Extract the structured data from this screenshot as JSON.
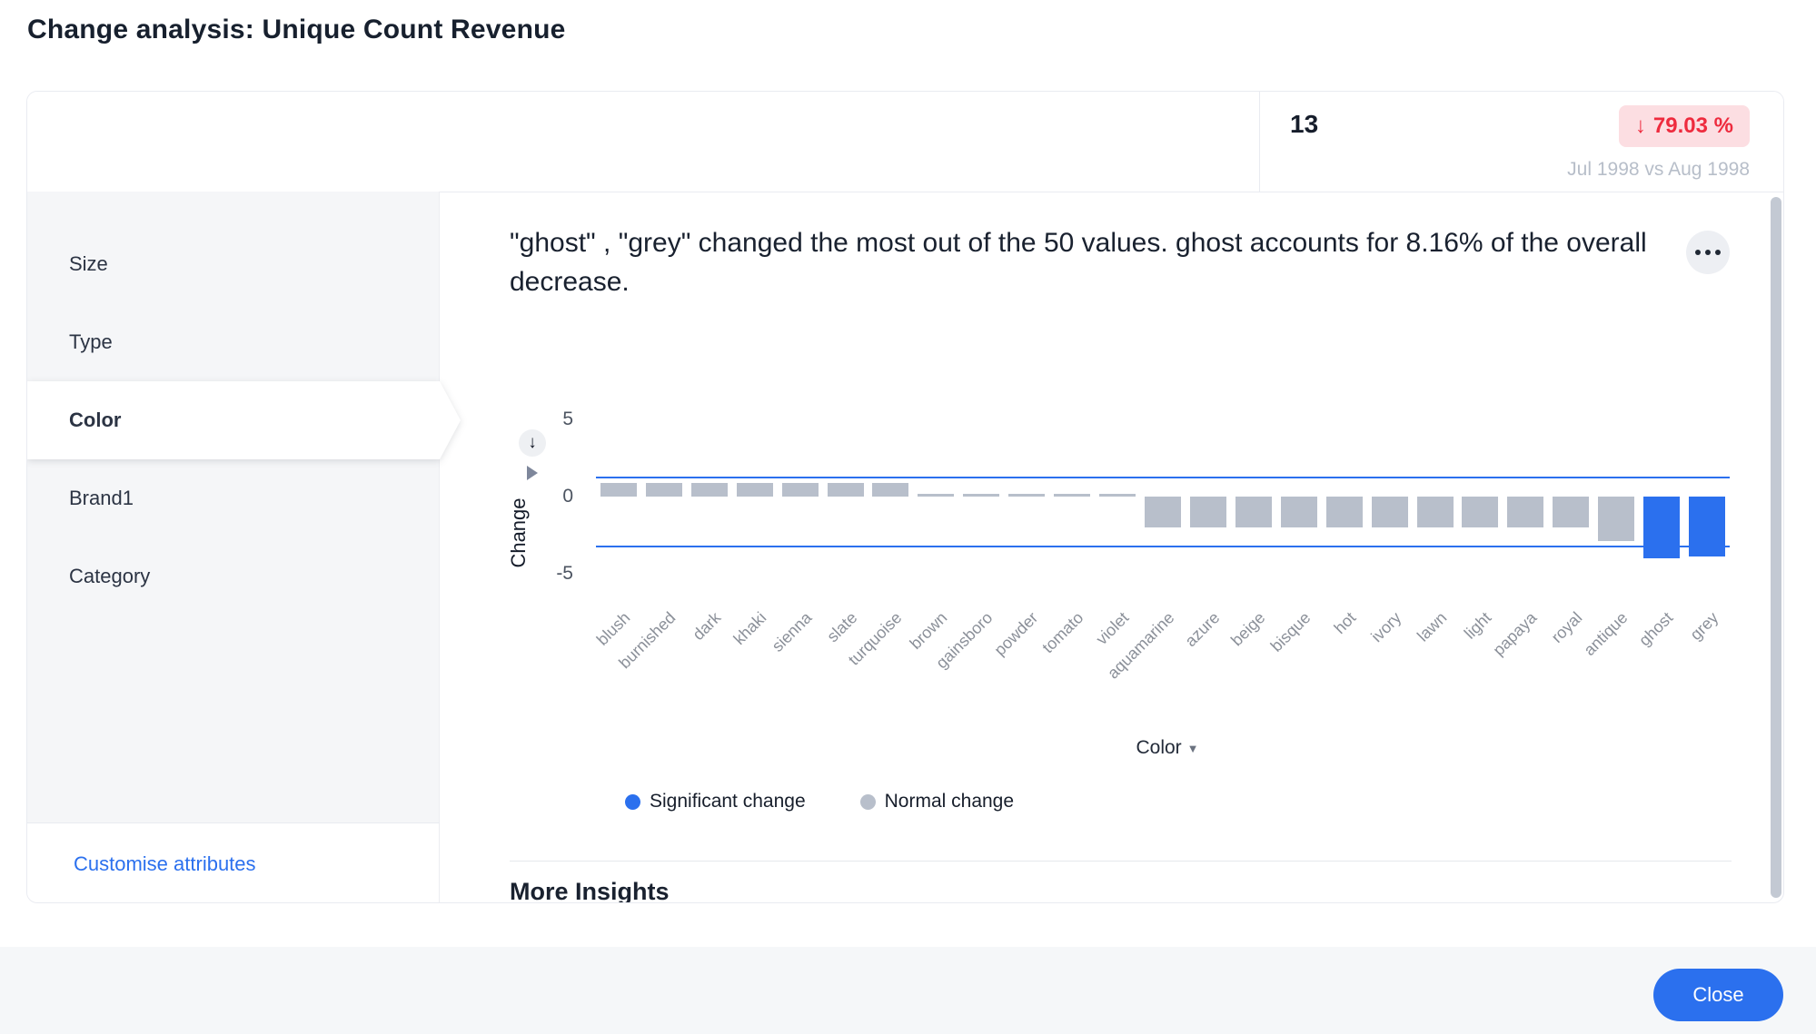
{
  "page_title": "Change analysis: Unique Count Revenue",
  "header": {
    "metric_value": "13",
    "change_badge": {
      "arrow": "↓",
      "value": "79.03 %"
    },
    "comparison_label": "Jul 1998 vs Aug 1998",
    "badge_colors": {
      "text": "#ee2b3e",
      "background": "#fcdee2"
    }
  },
  "sidebar": {
    "items": [
      {
        "label": "Size",
        "selected": false
      },
      {
        "label": "Type",
        "selected": false
      },
      {
        "label": "Color",
        "selected": true
      },
      {
        "label": "Brand1",
        "selected": false
      },
      {
        "label": "Category",
        "selected": false
      }
    ],
    "customise_link": "Customise attributes"
  },
  "insight": {
    "text": "\"ghost\" , \"grey\" changed the most out of the 50 values. ghost accounts for 8.16% of the overall decrease."
  },
  "chart_data": {
    "type": "bar",
    "ylabel": "Change",
    "xlabel": "Color",
    "ylim": [
      -5,
      5
    ],
    "yticks": [
      5,
      0,
      -5
    ],
    "grid": false,
    "threshold_upper": 1.3,
    "threshold_lower": -3.2,
    "categories": [
      "blush",
      "burnished",
      "dark",
      "khaki",
      "sienna",
      "slate",
      "turquoise",
      "brown",
      "gainsboro",
      "powder",
      "tomato",
      "violet",
      "aquamarine",
      "azure",
      "beige",
      "bisque",
      "hot",
      "ivory",
      "lawn",
      "light",
      "papaya",
      "royal",
      "antique",
      "ghost",
      "grey"
    ],
    "values": [
      0.9,
      0.9,
      0.9,
      0.9,
      0.9,
      0.9,
      0.9,
      0.2,
      0.2,
      0.2,
      0.2,
      0.2,
      -2,
      -2,
      -2,
      -2,
      -2,
      -2,
      -2,
      -2,
      -2,
      -2,
      -2.9,
      -4,
      -3.9
    ],
    "significant": [
      false,
      false,
      false,
      false,
      false,
      false,
      false,
      false,
      false,
      false,
      false,
      false,
      false,
      false,
      false,
      false,
      false,
      false,
      false,
      false,
      false,
      false,
      false,
      true,
      true
    ],
    "colors": {
      "significant": "#2b70ee",
      "normal": "#b8bfcb",
      "threshold_line": "#2b70ee"
    },
    "legend": [
      {
        "label": "Significant change",
        "color": "#2b70ee"
      },
      {
        "label": "Normal change",
        "color": "#b8bfcb"
      }
    ],
    "legend_position": "bottom"
  },
  "more_insights_title": "More Insights",
  "footer": {
    "close_label": "Close"
  }
}
